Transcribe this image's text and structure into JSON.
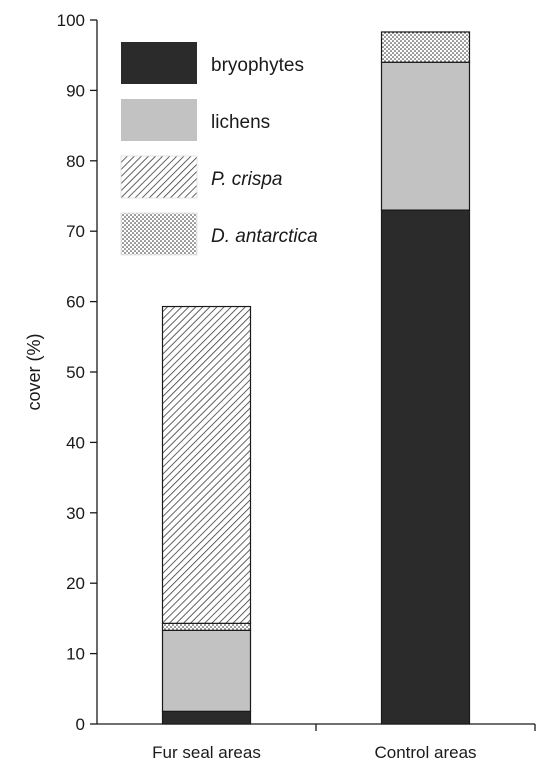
{
  "chart_data": {
    "type": "bar",
    "stacked": true,
    "categories": [
      "Fur seal areas",
      "Control areas"
    ],
    "series": [
      {
        "name": "bryophytes",
        "values": [
          1.8,
          73.0
        ],
        "fill": "#2b2b2b",
        "pattern": "solid",
        "italic": false
      },
      {
        "name": "lichens",
        "values": [
          11.5,
          21.0
        ],
        "fill": "#c2c2c2",
        "pattern": "solid",
        "italic": false
      },
      {
        "name": "D. antarctica",
        "values": [
          1.0,
          4.3
        ],
        "fill": "#ffffff",
        "pattern": "dots",
        "italic": true
      },
      {
        "name": "P. crispa",
        "values": [
          45.0,
          0.0
        ],
        "fill": "#ffffff",
        "pattern": "hatch",
        "italic": true
      }
    ],
    "legend_order": [
      "bryophytes",
      "lichens",
      "P. crispa",
      "D. antarctica"
    ],
    "legend_position": "top-left",
    "xlabel": "",
    "ylabel": "cover (%)",
    "ylim": [
      0,
      100
    ],
    "yticks": [
      0,
      10,
      20,
      30,
      40,
      50,
      60,
      70,
      80,
      90,
      100
    ],
    "grid": false
  }
}
